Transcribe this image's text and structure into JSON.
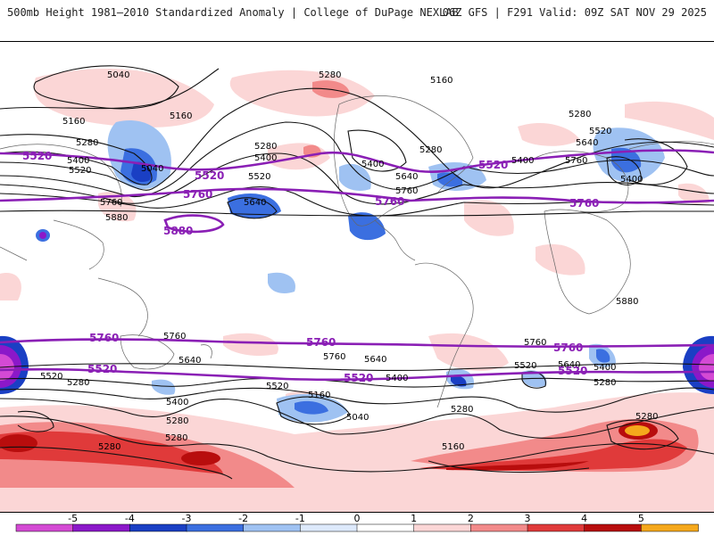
{
  "header": {
    "left_title": "500mb Height 1981–2010 Standardized Anomaly | College of DuPage NEXLAB",
    "right_title": "06Z GFS | F291 Valid: 09Z SAT NOV 29 2025"
  },
  "colorbar": {
    "ticks": [
      "-5",
      "-4",
      "-3",
      "-2",
      "-1",
      "0",
      "1",
      "2",
      "3",
      "4",
      "5"
    ],
    "colors": [
      "#d44ad4",
      "#8b18c9",
      "#1a3fc4",
      "#3b6fe0",
      "#9fc2f2",
      "#dde9fb",
      "#ffffff",
      "#fbd6d6",
      "#f28a8a",
      "#e03a3a",
      "#b80d0d",
      "#f5a81c"
    ]
  },
  "contours": {
    "black_labels": [
      "5040",
      "5160",
      "5280",
      "5400",
      "5520",
      "5640",
      "5760",
      "5880"
    ],
    "purple_labels": [
      "5520",
      "5760",
      "5880"
    ],
    "labels": [
      {
        "text": "5040",
        "kind": "black"
      },
      {
        "text": "5160",
        "kind": "black"
      },
      {
        "text": "5160",
        "kind": "black"
      },
      {
        "text": "5280",
        "kind": "black"
      },
      {
        "text": "5400",
        "kind": "black"
      },
      {
        "text": "5520",
        "kind": "black"
      },
      {
        "text": "5040",
        "kind": "black"
      },
      {
        "text": "5280",
        "kind": "black"
      },
      {
        "text": "5400",
        "kind": "black"
      },
      {
        "text": "5520",
        "kind": "black"
      },
      {
        "text": "5640",
        "kind": "black"
      },
      {
        "text": "5760",
        "kind": "black"
      },
      {
        "text": "5880",
        "kind": "black"
      },
      {
        "text": "5280",
        "kind": "black"
      },
      {
        "text": "5160",
        "kind": "black"
      },
      {
        "text": "5280",
        "kind": "black"
      },
      {
        "text": "5400",
        "kind": "black"
      },
      {
        "text": "5640",
        "kind": "black"
      },
      {
        "text": "5760",
        "kind": "black"
      },
      {
        "text": "5280",
        "kind": "black"
      },
      {
        "text": "5520",
        "kind": "black"
      },
      {
        "text": "5640",
        "kind": "black"
      },
      {
        "text": "5760",
        "kind": "black"
      },
      {
        "text": "5400",
        "kind": "black"
      },
      {
        "text": "5400",
        "kind": "black"
      },
      {
        "text": "5880",
        "kind": "black"
      },
      {
        "text": "5760",
        "kind": "black"
      },
      {
        "text": "5640",
        "kind": "black"
      },
      {
        "text": "5520",
        "kind": "black"
      },
      {
        "text": "5280",
        "kind": "black"
      },
      {
        "text": "5400",
        "kind": "black"
      },
      {
        "text": "5280",
        "kind": "black"
      },
      {
        "text": "5280",
        "kind": "black"
      },
      {
        "text": "5280",
        "kind": "black"
      },
      {
        "text": "5520",
        "kind": "black"
      },
      {
        "text": "5160",
        "kind": "black"
      },
      {
        "text": "5040",
        "kind": "black"
      },
      {
        "text": "5760",
        "kind": "black"
      },
      {
        "text": "5640",
        "kind": "black"
      },
      {
        "text": "5400",
        "kind": "black"
      },
      {
        "text": "5280",
        "kind": "black"
      },
      {
        "text": "5160",
        "kind": "black"
      },
      {
        "text": "5760",
        "kind": "black"
      },
      {
        "text": "5520",
        "kind": "black"
      },
      {
        "text": "5640",
        "kind": "black"
      },
      {
        "text": "5400",
        "kind": "black"
      },
      {
        "text": "5280",
        "kind": "black"
      },
      {
        "text": "5280",
        "kind": "black"
      },
      {
        "text": "5520",
        "kind": "purple"
      },
      {
        "text": "5760",
        "kind": "purple"
      },
      {
        "text": "5880",
        "kind": "purple"
      },
      {
        "text": "5760",
        "kind": "purple"
      },
      {
        "text": "5520",
        "kind": "purple"
      },
      {
        "text": "5520",
        "kind": "purple"
      },
      {
        "text": "5760",
        "kind": "purple"
      },
      {
        "text": "5760",
        "kind": "purple"
      },
      {
        "text": "5760",
        "kind": "purple"
      },
      {
        "text": "5520",
        "kind": "purple"
      },
      {
        "text": "5760",
        "kind": "purple"
      },
      {
        "text": "5520",
        "kind": "purple"
      },
      {
        "text": "5520",
        "kind": "purple"
      },
      {
        "text": "5760",
        "kind": "purple"
      },
      {
        "text": "5520",
        "kind": "purple"
      }
    ]
  }
}
